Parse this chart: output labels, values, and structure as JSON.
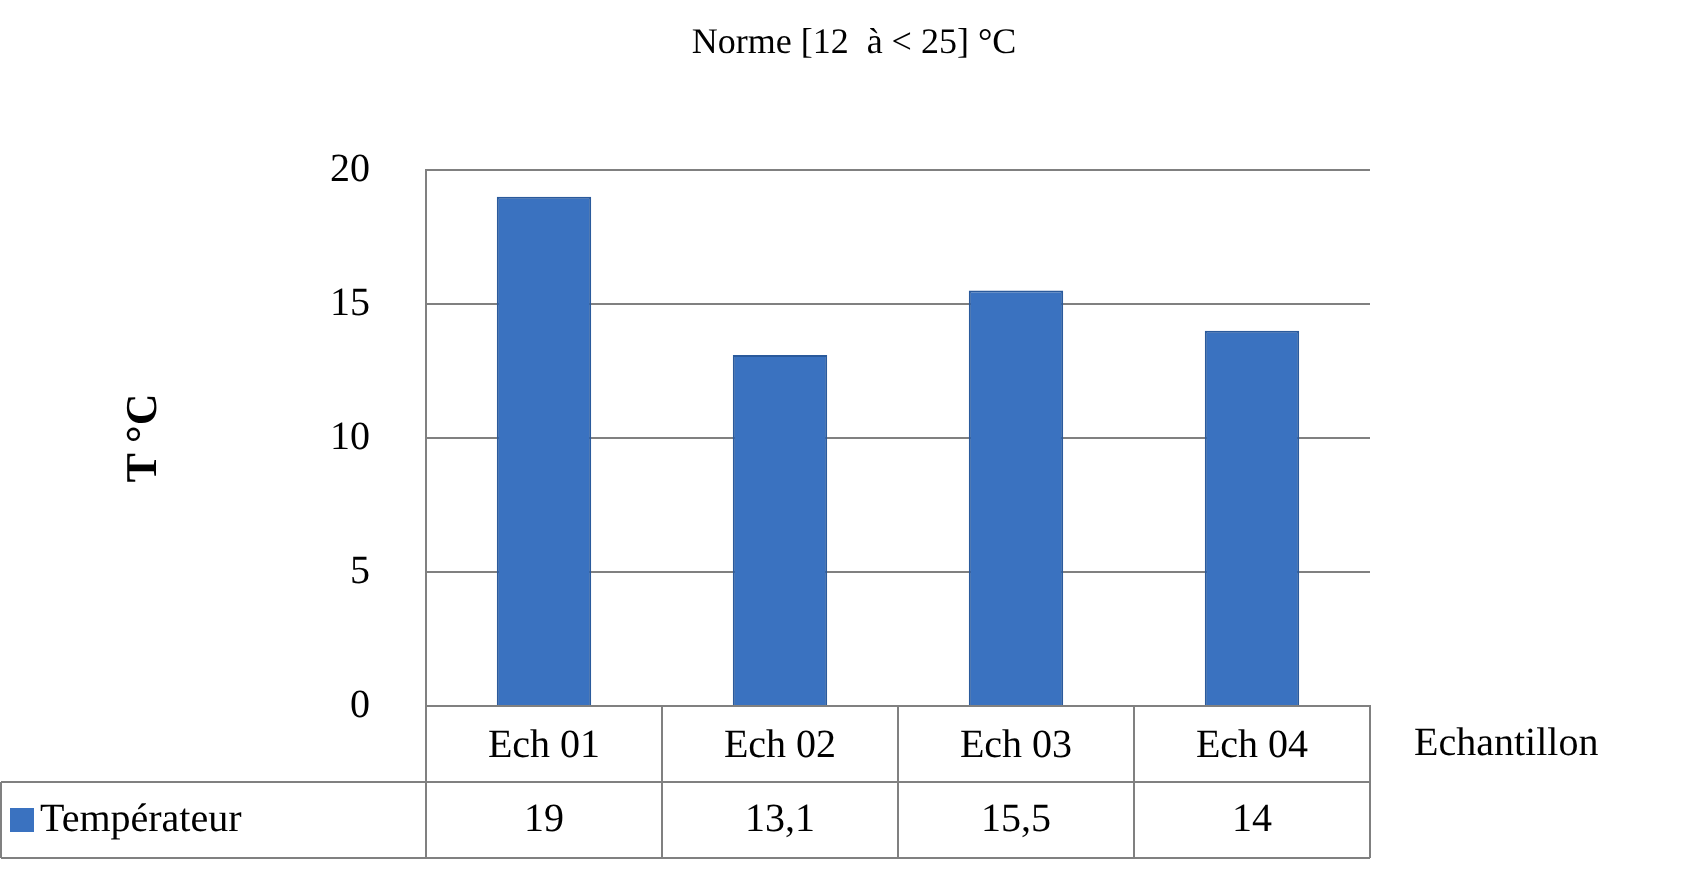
{
  "chart_data": {
    "type": "bar",
    "title": "Norme [12  à < 25] °C",
    "xlabel": "Echantillon",
    "ylabel": "T °C",
    "categories": [
      "Ech 01",
      "Ech 02",
      "Ech 03",
      "Ech 04"
    ],
    "series": [
      {
        "name": "Températeur",
        "color": "#3a72c0",
        "values": [
          19,
          13.1,
          15.5,
          14
        ],
        "value_labels": [
          "19",
          "13,1",
          "15,5",
          "14"
        ]
      }
    ],
    "ylim": [
      0,
      20
    ],
    "yticks": [
      0,
      5,
      10,
      15,
      20
    ],
    "grid": "y",
    "legend": "bottom"
  }
}
